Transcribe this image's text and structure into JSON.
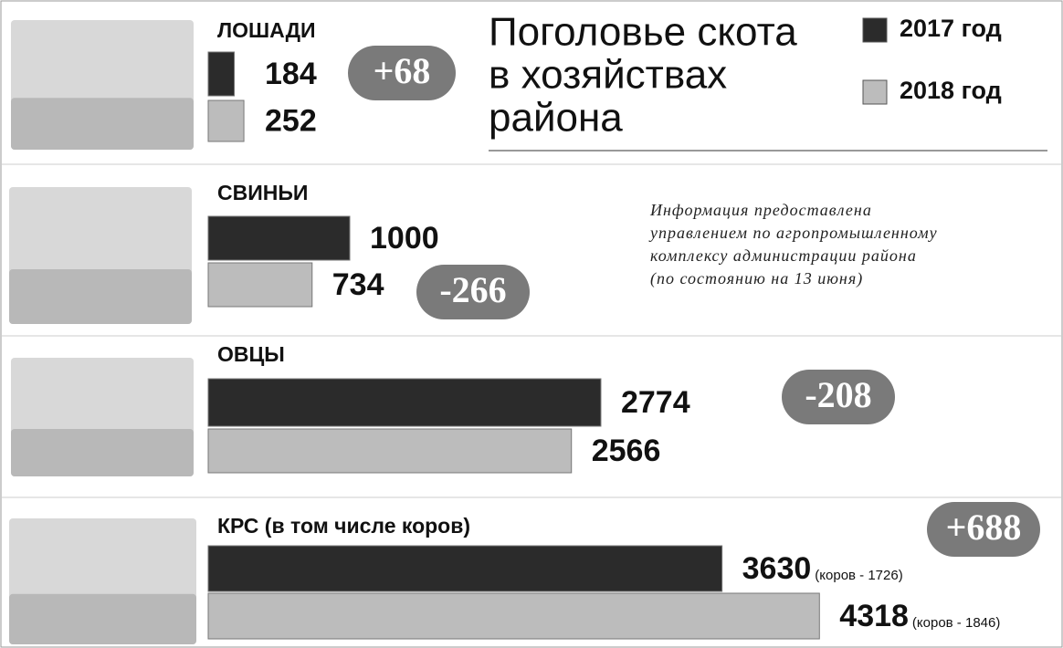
{
  "chart_data": {
    "type": "bar",
    "title_lines": [
      "Поголовье скота",
      "в хозяйствах",
      "района"
    ],
    "source_lines": [
      "Информация предоставлена",
      "управлением по агропромышленному",
      "комплексу администрации района",
      "(по состоянию на 13 июня)"
    ],
    "categories": [
      "ЛОШАДИ",
      "СВИНЬИ",
      "ОВЦЫ",
      "КРС (в том числе коров)"
    ],
    "series": [
      {
        "name": "2017 год",
        "color": "#2b2b2b",
        "values": [
          184,
          1000,
          2774,
          3630
        ],
        "notes": [
          null,
          null,
          null,
          "(коров - 1726)"
        ]
      },
      {
        "name": "2018 год",
        "color": "#bcbcbc",
        "values": [
          252,
          734,
          2566,
          4318
        ],
        "notes": [
          null,
          null,
          null,
          "(коров - 1846)"
        ]
      }
    ],
    "changes": [
      "+68",
      "-266",
      "-208",
      "+688"
    ]
  }
}
